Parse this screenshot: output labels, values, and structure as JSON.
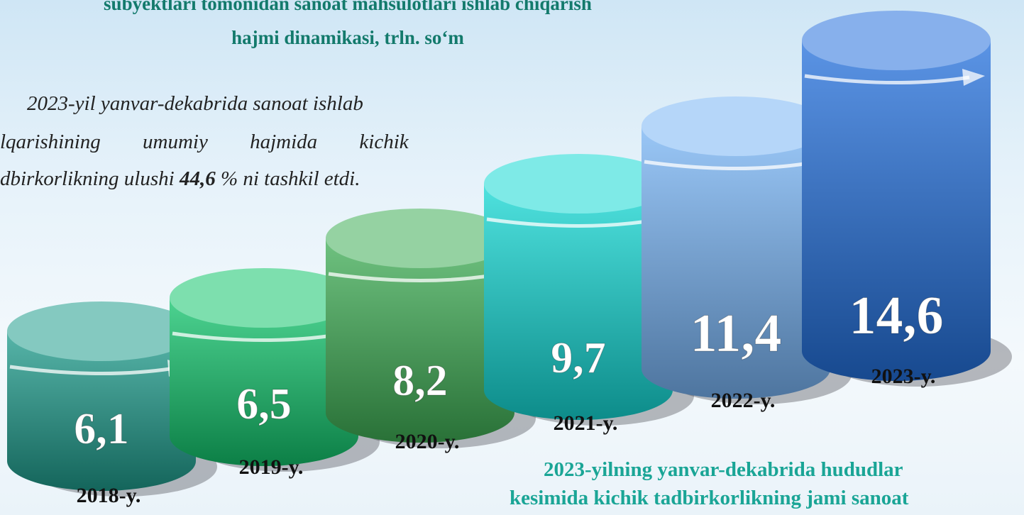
{
  "chart_data": {
    "type": "cylinder",
    "title": [
      "subyektlari tomonidan sanoat mahsulotlari ishlab chiqarish",
      "hajmi dinamikasi, trln. so‘m"
    ],
    "annotation": {
      "lines": [
        "2023-yil yanvar-dekabrida sanoat ishlab",
        "lqarishining umumiy hajmida kichik"
      ],
      "last": {
        "before": "dbirkorlikning ulushi ",
        "bold": "44,6",
        "after": " % ni tashkil etdi."
      }
    },
    "categories": [
      "2018-y.",
      "2019-y.",
      "2020-y.",
      "2021-y.",
      "2022-y.",
      "2023-y."
    ],
    "values": [
      6.1,
      6.5,
      8.2,
      9.7,
      11.4,
      14.6
    ],
    "value_labels": [
      "6,1",
      "6,5",
      "8,2",
      "9,7",
      "11,4",
      "14,6"
    ],
    "colors": [
      "#1f9c8c",
      "#12c46c",
      "#3fae55",
      "#14d8d4",
      "#78b4f4",
      "#2470dc"
    ],
    "caption": [
      "2023-yilning yanvar-dekabrida hududlar",
      "kesimida kichik tadbirkorlikning jami sanoat"
    ]
  }
}
